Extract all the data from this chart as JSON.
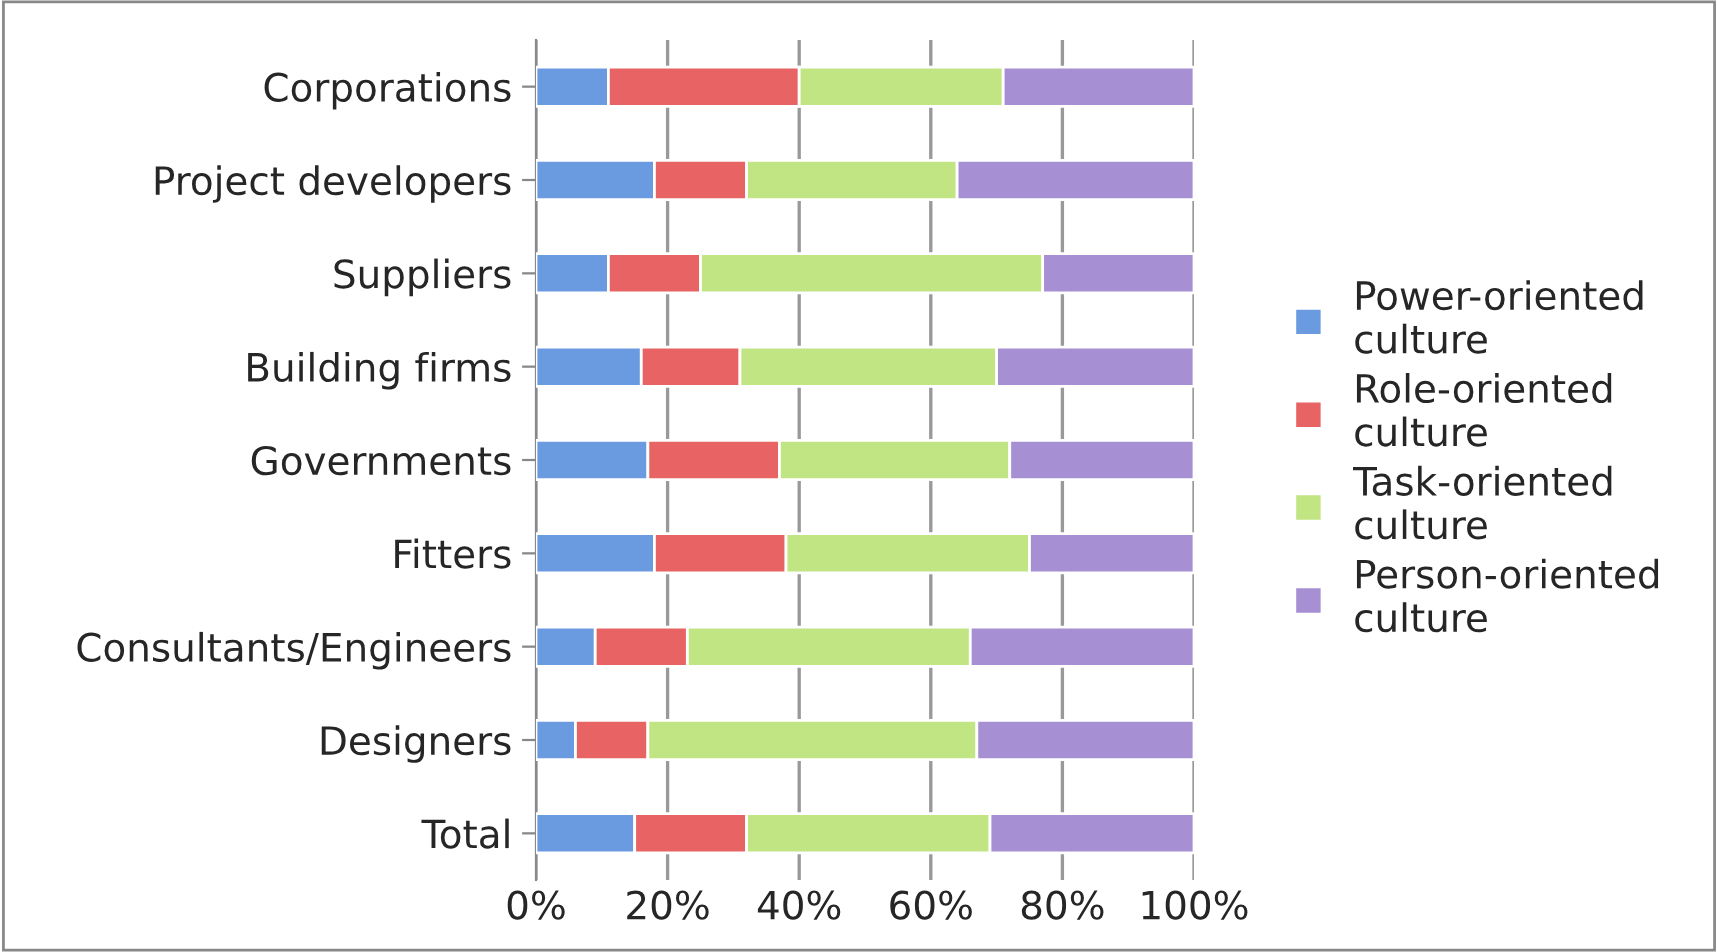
{
  "chart_data": {
    "type": "bar",
    "orientation": "horizontal",
    "stacked": true,
    "categories": [
      "Corporations",
      "Project developers",
      "Suppliers",
      "Building firms",
      "Governments",
      "Fitters",
      "Consultants/Engineers",
      "Designers",
      "Total"
    ],
    "series": [
      {
        "name": "Power-oriented culture",
        "color": "#6a9be0",
        "values": [
          11,
          18,
          11,
          16,
          17,
          18,
          9,
          6,
          15
        ]
      },
      {
        "name": "Role-oriented culture",
        "color": "#e86464",
        "values": [
          29,
          14,
          14,
          15,
          20,
          20,
          14,
          11,
          17
        ]
      },
      {
        "name": "Task-oriented culture",
        "color": "#c2e584",
        "values": [
          31,
          32,
          52,
          39,
          35,
          37,
          43,
          50,
          37
        ]
      },
      {
        "name": "Person-oriented culture",
        "color": "#a68fd2",
        "values": [
          29,
          36,
          23,
          30,
          28,
          25,
          34,
          33,
          31
        ]
      }
    ],
    "xlim": [
      0,
      100
    ],
    "xticks": [
      {
        "value": 0,
        "label": "0%"
      },
      {
        "value": 20,
        "label": "20%"
      },
      {
        "value": 40,
        "label": "40%"
      },
      {
        "value": 60,
        "label": "60%"
      },
      {
        "value": 80,
        "label": "80%"
      },
      {
        "value": 100,
        "label": "100%"
      }
    ],
    "grid": "x",
    "legend": "right"
  }
}
